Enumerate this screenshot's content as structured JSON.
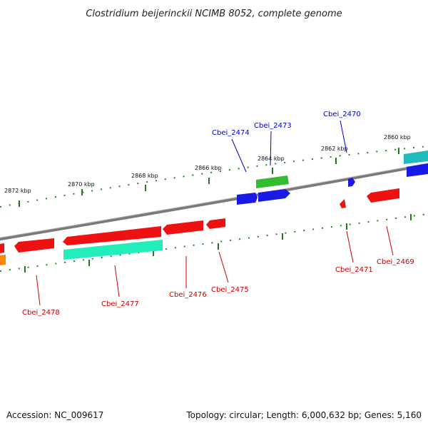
{
  "title": "Clostridium beijerinckii NCIMB 8052, complete genome",
  "footer": {
    "accession": "Accession: NC_009617",
    "summary": "Topology: circular; Length: 6,000,632 bp; Genes: 5,160"
  },
  "ticks": [
    {
      "label": "2872 kbp"
    },
    {
      "label": "2870 kbp"
    },
    {
      "label": "2868 kbp"
    },
    {
      "label": "2866 kbp"
    },
    {
      "label": "2864 kbp"
    },
    {
      "label": "2862 kbp"
    },
    {
      "label": "2860 kbp"
    }
  ],
  "gene_labels": {
    "forward": [
      "Cbei_2474",
      "Cbei_2473",
      "Cbei_2470"
    ],
    "reverse": [
      "Cbei_2478",
      "Cbei_2477",
      "Cbei_2476",
      "Cbei_2475",
      "Cbei_2471",
      "Cbei_2469"
    ]
  },
  "colors": {
    "backbone": "#808080",
    "forward_gene": "#0000ee",
    "reverse_gene": "#ee0000",
    "green_gene": "#33bb33",
    "aqua_gene": "#22ddaa",
    "teal_gene": "#22bbbb",
    "orange_gene": "#ff8800",
    "tick_color": "#227722",
    "forward_label": "#0000cc",
    "reverse_label": "#cc0000"
  }
}
